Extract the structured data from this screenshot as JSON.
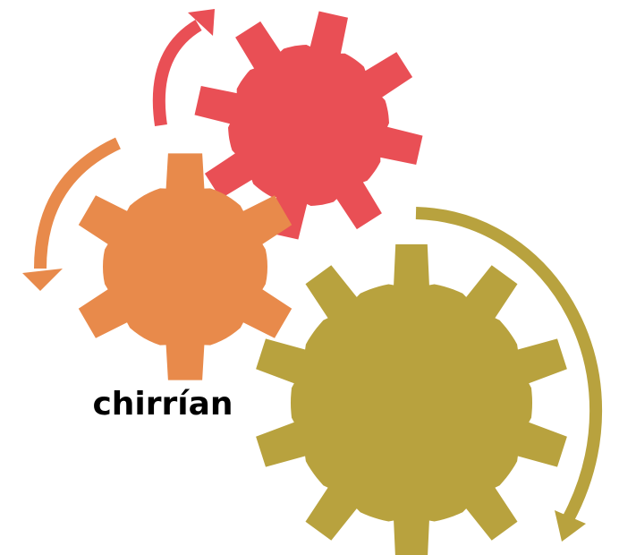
{
  "label": "chirrían"
}
